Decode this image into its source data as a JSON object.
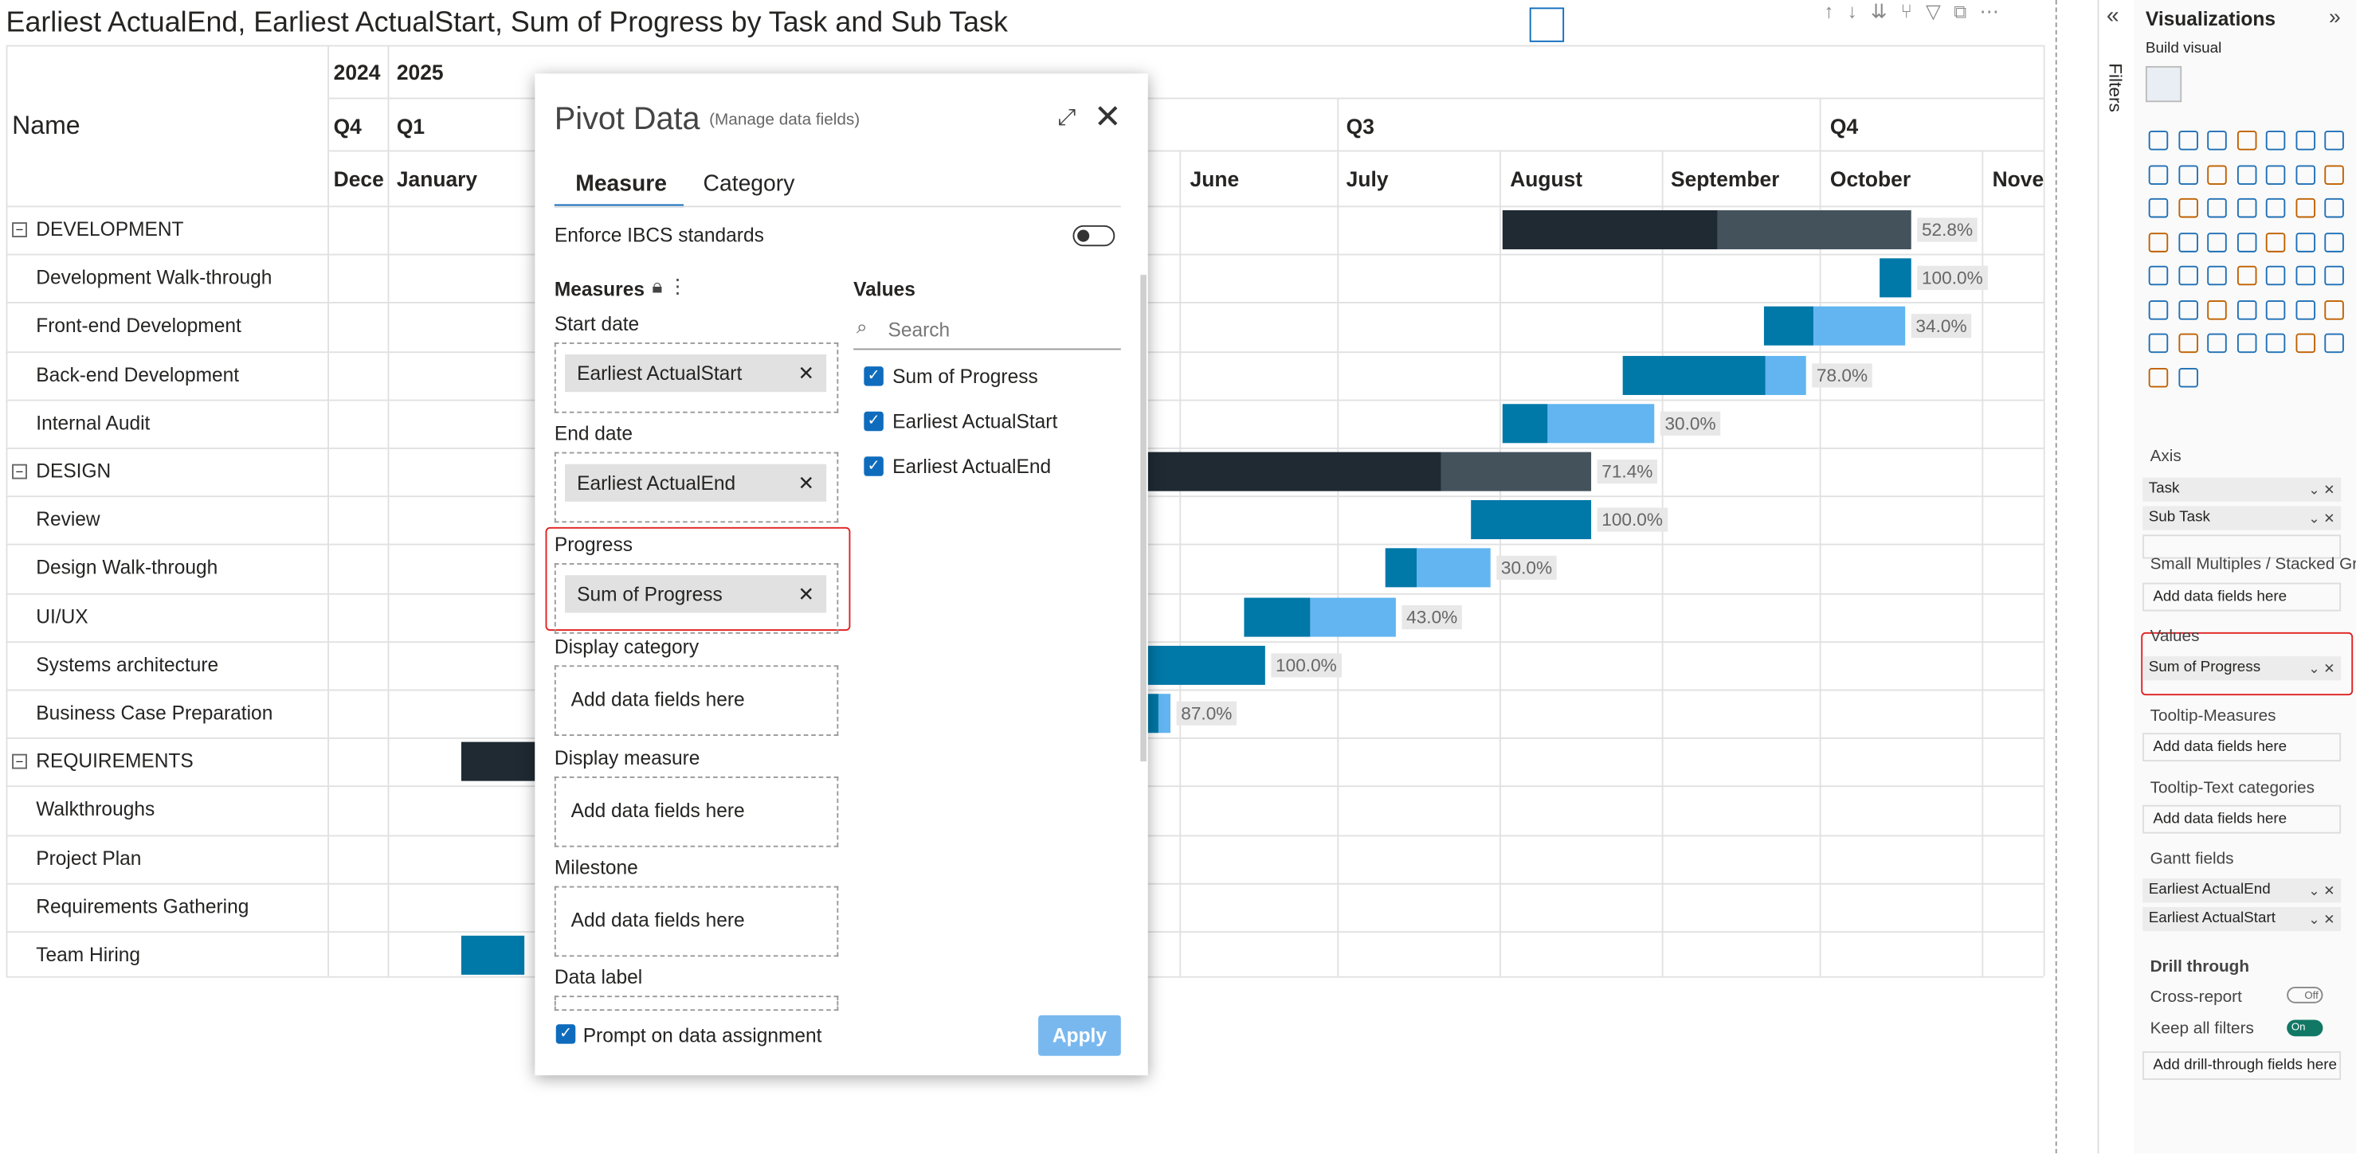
{
  "title": "Earliest ActualEnd, Earliest ActualStart, Sum of Progress by Task and Sub Task",
  "header": {
    "name": "Name",
    "years": [
      "2024",
      "2025"
    ],
    "quarters": [
      "Q4",
      "Q1",
      "Q3",
      "Q4"
    ],
    "months": [
      "Decer",
      "January",
      "June",
      "July",
      "August",
      "September",
      "October",
      "Nover"
    ]
  },
  "rows": [
    {
      "name": "DEVELOPMENT",
      "label": "52.8%"
    },
    {
      "name": "Development Walk-through",
      "label": "100.0%"
    },
    {
      "name": "Front-end Development",
      "label": "34.0%"
    },
    {
      "name": "Back-end Development",
      "label": "78.0%"
    },
    {
      "name": "Internal Audit",
      "label": "30.0%"
    },
    {
      "name": "DESIGN",
      "label": "71.4%"
    },
    {
      "name": "Review",
      "label": "100.0%"
    },
    {
      "name": "Design Walk-through",
      "label": "30.0%"
    },
    {
      "name": "UI/UX",
      "label": "43.0%"
    },
    {
      "name": "Systems architecture",
      "label": "100.0%"
    },
    {
      "name": "Business Case Preparation",
      "label": "87.0%"
    },
    {
      "name": "REQUIREMENTS"
    },
    {
      "name": "Walkthroughs"
    },
    {
      "name": "Project Plan"
    },
    {
      "name": "Requirements Gathering"
    },
    {
      "name": "Team Hiring"
    }
  ],
  "dialog": {
    "title": "Pivot Data",
    "subtitle": "(Manage data fields)",
    "tabs": [
      "Measure",
      "Category"
    ],
    "ibcs": "Enforce IBCS standards",
    "measures_heading": "Measures",
    "values_heading": "Values",
    "search": "Search",
    "values": [
      "Sum of Progress",
      "Earliest ActualStart",
      "Earliest ActualEnd"
    ],
    "sections": [
      {
        "label": "Start date",
        "field": "Earliest ActualStart"
      },
      {
        "label": "End date",
        "field": "Earliest ActualEnd"
      },
      {
        "label": "Progress",
        "field": "Sum of Progress"
      },
      {
        "label": "Display category",
        "placeholder": "Add data fields here"
      },
      {
        "label": "Display measure",
        "placeholder": "Add data fields here"
      },
      {
        "label": "Milestone",
        "placeholder": "Add data fields here"
      },
      {
        "label": "Data label"
      }
    ],
    "prompt": "Prompt on data assignment",
    "apply": "Apply"
  },
  "pane": {
    "filters": "Filters",
    "title": "Visualizations",
    "subtitle": "Build visual",
    "wells": [
      {
        "label": "Axis",
        "fields": [
          "Task",
          "Sub Task"
        ]
      },
      {
        "label": "Small Multiples / Stacked Gr...",
        "placeholder": "Add data fields here"
      },
      {
        "label": "Values",
        "fields": [
          "Sum of Progress"
        ]
      },
      {
        "label": "Tooltip-Measures",
        "placeholder": "Add data fields here"
      },
      {
        "label": "Tooltip-Text categories",
        "placeholder": "Add data fields here"
      },
      {
        "label": "Gantt fields",
        "fields": [
          "Earliest ActualEnd",
          "Earliest ActualStart"
        ]
      }
    ],
    "drill_heading": "Drill through",
    "cross_report": "Cross-report",
    "off": "Off",
    "keep_filters": "Keep all filters",
    "on": "On",
    "drill_placeholder": "Add drill-through fields here"
  }
}
